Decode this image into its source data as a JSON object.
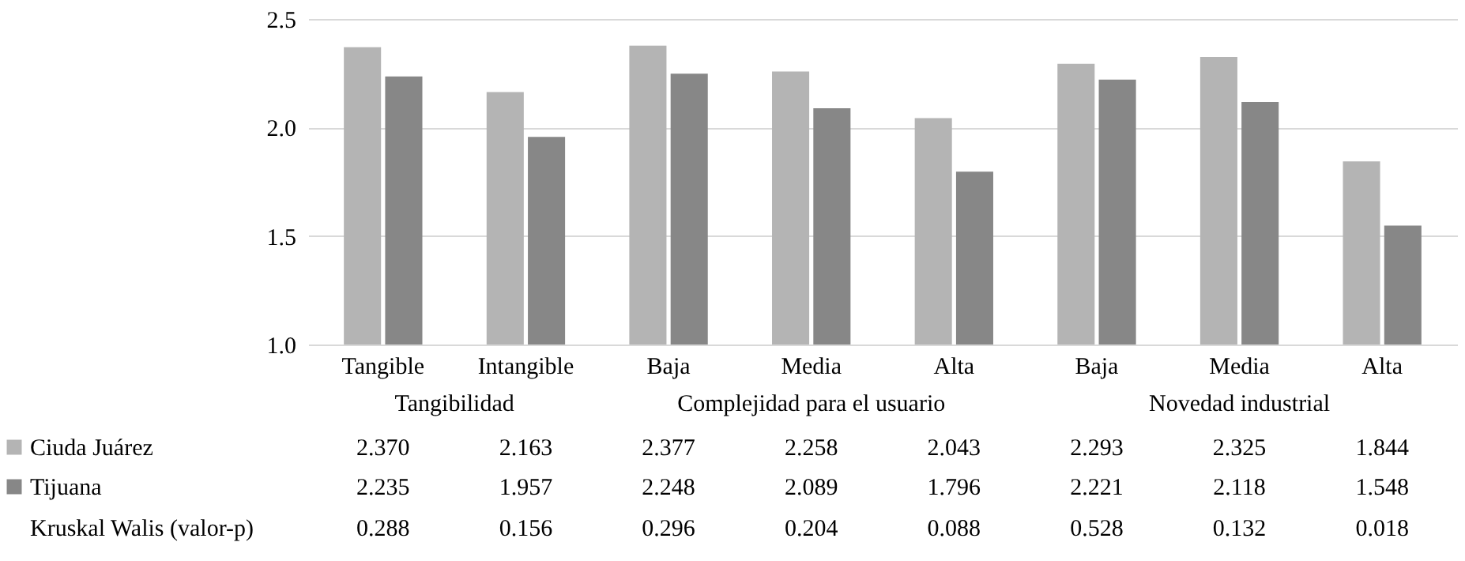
{
  "chart_data": {
    "type": "bar",
    "categories": [
      "Tangible",
      "Intangible",
      "Baja",
      "Media",
      "Alta",
      "Baja",
      "Media",
      "Alta"
    ],
    "series": [
      {
        "name": "Ciuda Juárez",
        "color": "#b4b4b4",
        "values": [
          2.37,
          2.163,
          2.377,
          2.258,
          2.043,
          2.293,
          2.325,
          1.844
        ],
        "value_labels": [
          "2.370",
          "2.163",
          "2.377",
          "2.258",
          "2.043",
          "2.293",
          "2.325",
          "1.844"
        ]
      },
      {
        "name": "Tijuana",
        "color": "#878787",
        "values": [
          2.235,
          1.957,
          2.248,
          2.089,
          1.796,
          2.221,
          2.118,
          1.548
        ],
        "value_labels": [
          "2.235",
          "1.957",
          "2.248",
          "2.089",
          "1.796",
          "2.221",
          "2.118",
          "1.548"
        ]
      }
    ],
    "ylim": [
      1,
      2.5
    ],
    "yticks": [
      {
        "value": 1,
        "label": "1.0"
      },
      {
        "value": 1.5,
        "label": "1.5"
      },
      {
        "value": 2,
        "label": "2.0"
      },
      {
        "value": 2.5,
        "label": "2.5"
      }
    ],
    "grid": "y",
    "legend": "bottom",
    "annotations": [
      "Tangibilidad",
      "Complejidad para el usuario",
      "Novedad industrial",
      "Kruskal Walis (valor-p)",
      "0.288",
      "0.156",
      "0.296",
      "0.204",
      "0.088",
      "0.528",
      "0.132",
      "0.018"
    ]
  }
}
